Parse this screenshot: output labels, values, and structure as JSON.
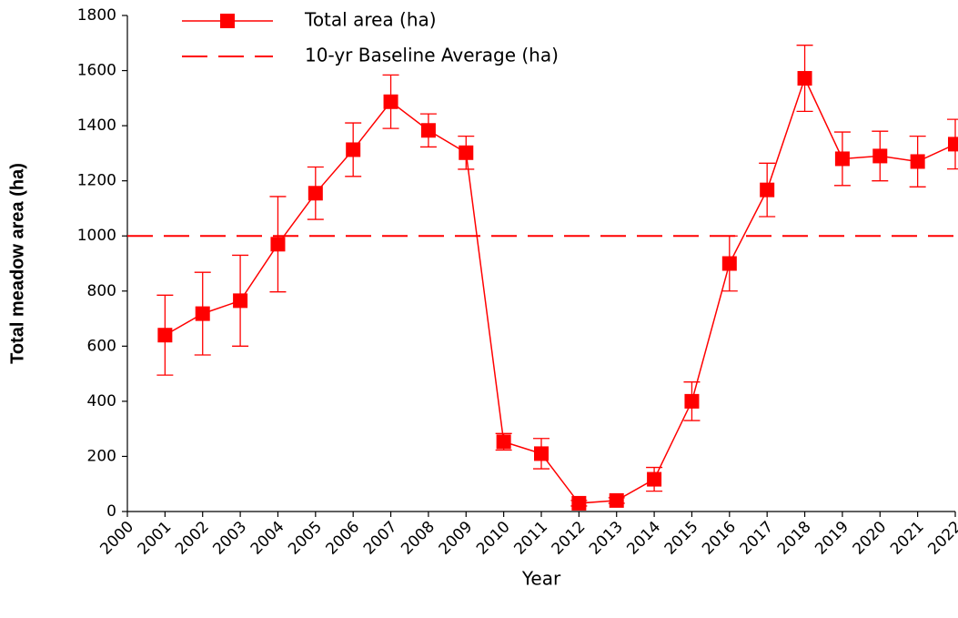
{
  "chart_data": {
    "type": "line",
    "x_label": "Year",
    "y_label": "Total meadow area (ha)",
    "x": [
      2001,
      2002,
      2003,
      2004,
      2005,
      2006,
      2007,
      2008,
      2009,
      2010,
      2011,
      2012,
      2013,
      2014,
      2015,
      2016,
      2017,
      2018,
      2019,
      2020,
      2021,
      2022
    ],
    "series": [
      {
        "name": "Total area (ha)",
        "color": "#ff0000",
        "values": [
          640,
          718,
          765,
          970,
          1155,
          1313,
          1487,
          1383,
          1302,
          253,
          210,
          30,
          40,
          117,
          400,
          900,
          1167,
          1572,
          1280,
          1290,
          1270,
          1333
        ],
        "errors": [
          145,
          150,
          165,
          173,
          95,
          97,
          97,
          60,
          60,
          30,
          55,
          10,
          10,
          43,
          70,
          100,
          97,
          120,
          97,
          90,
          92,
          90
        ]
      }
    ],
    "reference_lines": [
      {
        "name": "10-yr Baseline Average (ha)",
        "value": 1000,
        "color": "#ff0000",
        "dash": true
      }
    ],
    "xlim": [
      2000,
      2022
    ],
    "xticks": [
      2000,
      2001,
      2002,
      2003,
      2004,
      2005,
      2006,
      2007,
      2008,
      2009,
      2010,
      2011,
      2012,
      2013,
      2014,
      2015,
      2016,
      2017,
      2018,
      2019,
      2020,
      2021,
      2022
    ],
    "ylim": [
      0,
      1800
    ],
    "yticks": [
      0,
      200,
      400,
      600,
      800,
      1000,
      1200,
      1400,
      1600,
      1800
    ],
    "grid": false,
    "legend": "top"
  }
}
